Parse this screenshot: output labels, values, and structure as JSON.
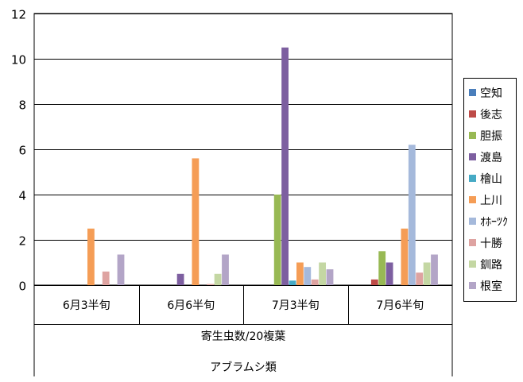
{
  "chart_data": {
    "type": "bar",
    "categories": [
      "6月3半旬",
      "6月6半旬",
      "7月3半旬",
      "7月6半旬"
    ],
    "series": [
      {
        "name": "空知",
        "color": "#4a7ebb",
        "values": [
          0,
          0,
          0,
          0
        ]
      },
      {
        "name": "後志",
        "color": "#be4b48",
        "values": [
          0,
          0,
          0,
          0.25
        ]
      },
      {
        "name": "胆振",
        "color": "#98b954",
        "values": [
          0,
          0,
          4.0,
          1.5
        ]
      },
      {
        "name": "渡島",
        "color": "#7d5fa0",
        "values": [
          0,
          0.5,
          10.5,
          1.0
        ]
      },
      {
        "name": "檜山",
        "color": "#46aac5",
        "values": [
          0,
          0,
          0.2,
          0
        ]
      },
      {
        "name": "上川",
        "color": "#f59d56",
        "values": [
          2.5,
          5.6,
          1.0,
          2.5
        ]
      },
      {
        "name": "ｵﾎｰﾂｸ",
        "color": "#a5b9db",
        "values": [
          0,
          0,
          0.8,
          6.2
        ]
      },
      {
        "name": "十勝",
        "color": "#dea3a1",
        "values": [
          0.6,
          0.05,
          0.25,
          0.55
        ]
      },
      {
        "name": "釧路",
        "color": "#c4d7a3",
        "values": [
          0,
          0.5,
          1.0,
          1.0
        ]
      },
      {
        "name": "根室",
        "color": "#b3a5c7",
        "values": [
          1.35,
          1.35,
          0.7,
          1.35
        ]
      }
    ],
    "ylim": [
      0,
      12
    ],
    "yticks": [
      "0",
      "2",
      "4",
      "6",
      "8",
      "10",
      "12"
    ],
    "xlabel_lines": [
      "寄生虫数/20複葉",
      "アブラムシ類"
    ],
    "grid": true,
    "legend_position": "right"
  }
}
